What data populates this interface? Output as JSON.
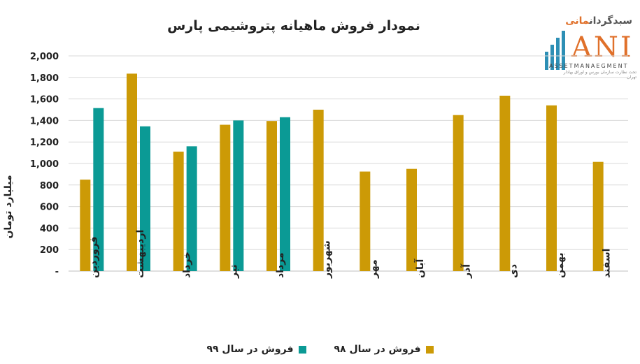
{
  "chart_data": {
    "type": "bar",
    "title": "نمودار فروش ماهیانه پتروشیمی پارس",
    "ylabel": "میلیارد تومان",
    "xlabel": "",
    "ylim": [
      0,
      2000
    ],
    "yticks": [
      0,
      200,
      400,
      600,
      800,
      1000,
      1200,
      1400,
      1600,
      1800,
      2000
    ],
    "ytick_labels": [
      "-",
      "200",
      "400",
      "600",
      "800",
      "1,000",
      "1,200",
      "1,400",
      "1,600",
      "1,800",
      "2,000"
    ],
    "grid": true,
    "legend_position": "bottom",
    "categories": [
      "فروردین",
      "اردیبهشت",
      "خرداد",
      "تیر",
      "مرداد",
      "شهریور",
      "مهر",
      "آبان",
      "آذر",
      "دی",
      "بهمن",
      "اسفند"
    ],
    "series": [
      {
        "name": "فروش در سال ۹۸",
        "color": "#cc9a06",
        "values": [
          850,
          1835,
          1110,
          1360,
          1395,
          1500,
          925,
          950,
          1450,
          1630,
          1540,
          1015
        ]
      },
      {
        "name": "فروش در سال ۹۹",
        "color": "#0b9a95",
        "values": [
          1515,
          1345,
          1160,
          1400,
          1430,
          null,
          null,
          null,
          null,
          null,
          null,
          null
        ]
      }
    ]
  },
  "logo": {
    "fa_main": "سبدگردان",
    "fa_accent": "مانی",
    "letters": "ANI",
    "sub": "ASSETMANAEGMENT",
    "tagline": "تحت نظارت سازمان بورس و اوراق بهادار تهران",
    "bar_color": "#2d8fb5",
    "accent_color": "#e0702a"
  }
}
